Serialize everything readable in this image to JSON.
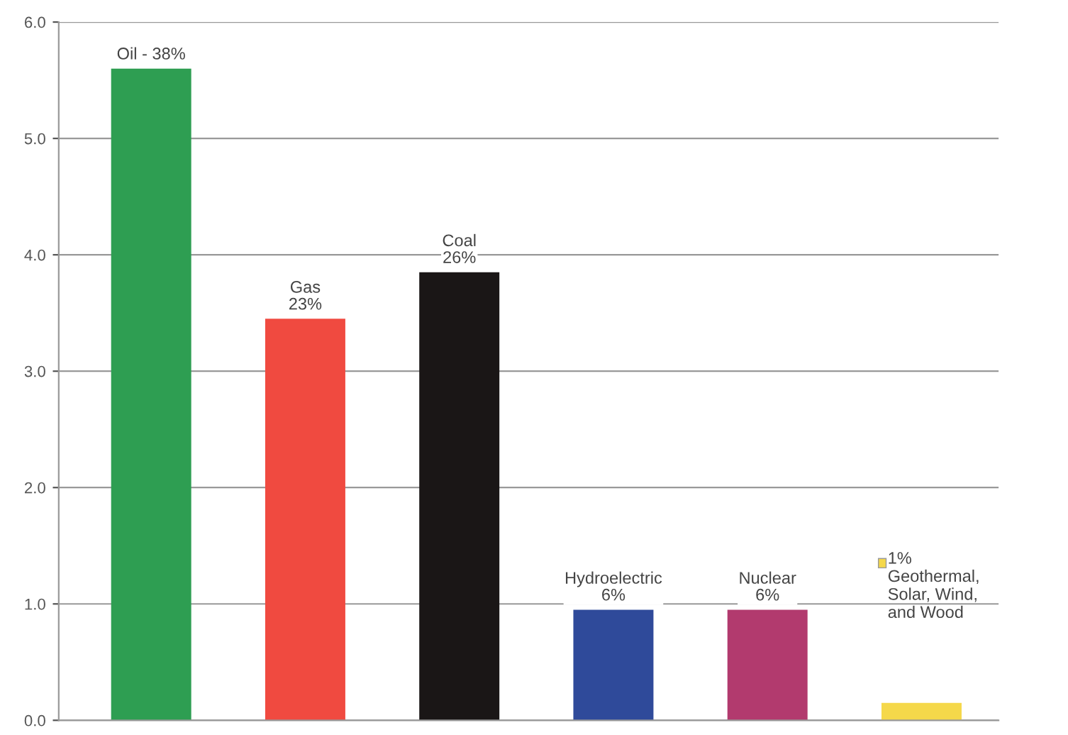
{
  "chart_data": {
    "type": "bar",
    "categories": [
      null,
      null,
      null,
      null,
      null,
      null
    ],
    "values": [
      5.6,
      3.45,
      3.85,
      0.95,
      0.95,
      0.15
    ],
    "colors": [
      "#2e9e52",
      "#f04a40",
      "#1a1616",
      "#2f4a9a",
      "#b23a6e",
      "#f5d84a"
    ],
    "annotations": [
      "Oil - 38%",
      "Gas\n23%",
      "Coal\n26%",
      "Hydroelectric\n6%",
      "Nuclear\n6%",
      "1%\nGeothermal,\nSolar, Wind,\nand Wood"
    ],
    "ylim": [
      0,
      6
    ],
    "yticks": [
      {
        "value": 0,
        "label": "0.0"
      },
      {
        "value": 1,
        "label": "1.0"
      },
      {
        "value": 2,
        "label": "2.0"
      },
      {
        "value": 3,
        "label": "3.0"
      },
      {
        "value": 4,
        "label": "4.0"
      },
      {
        "value": 5,
        "label": "5.0"
      },
      {
        "value": 6,
        "label": "6.0"
      }
    ],
    "grid": "y"
  }
}
